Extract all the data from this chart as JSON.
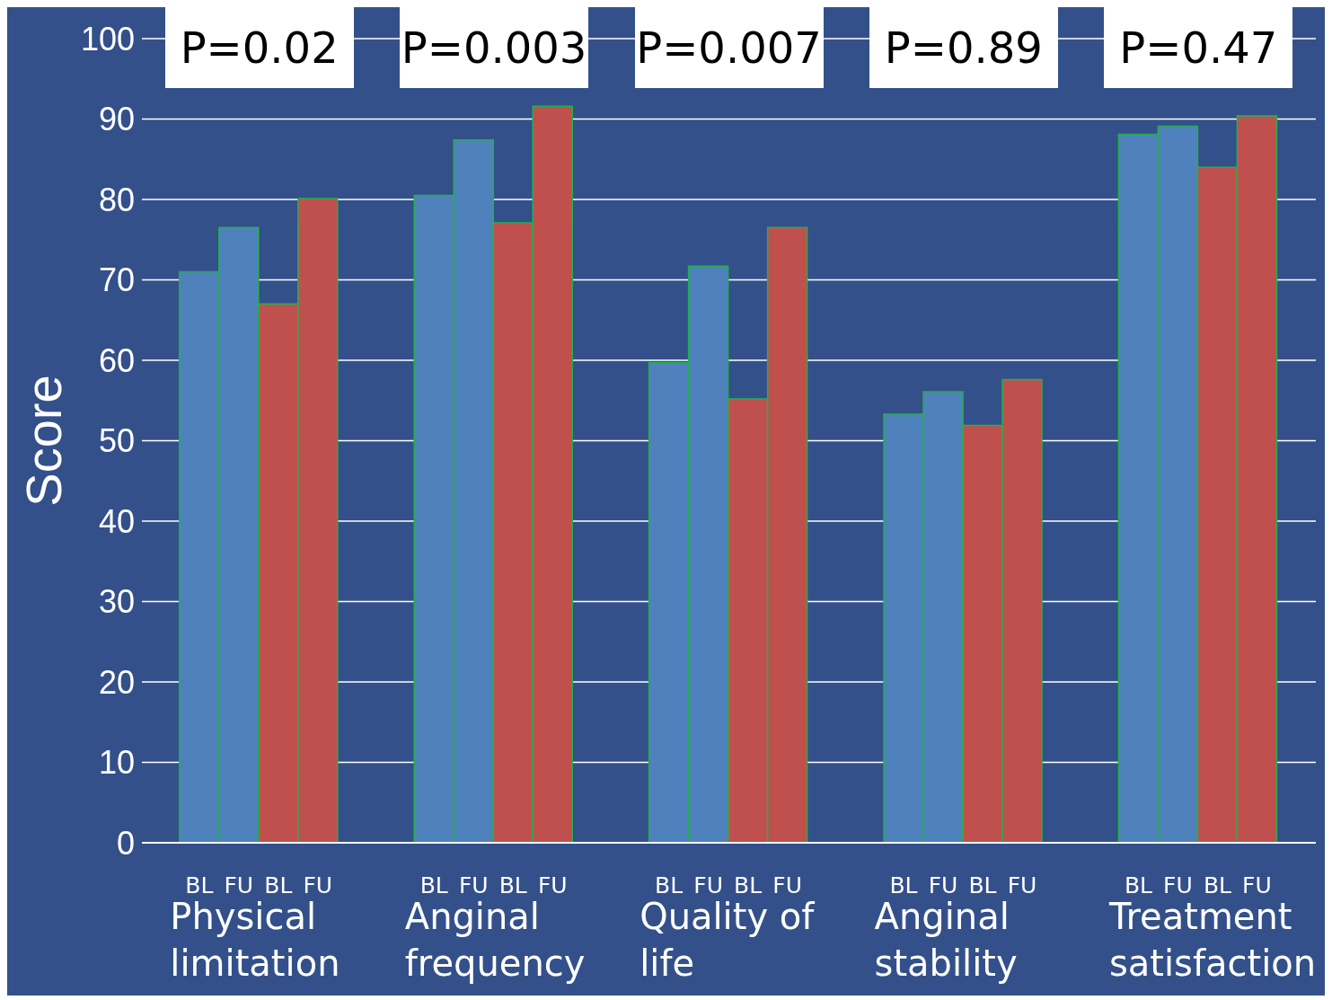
{
  "chart_data": {
    "type": "bar",
    "ylabel": "Score",
    "categories": [
      "Physical limitation",
      "Anginal frequency",
      "Quality of life",
      "Anginal stability",
      "Treatment satisfaction"
    ],
    "series": [
      {
        "name": "BL",
        "color": "#4f81bd",
        "values": [
          71.0,
          80.5,
          59.7,
          53.3,
          88.1
        ]
      },
      {
        "name": "FU",
        "color": "#4f81bd",
        "values": [
          76.5,
          87.4,
          71.7,
          56.1,
          89.1
        ]
      },
      {
        "name": "BL",
        "color": "#c0504d",
        "values": [
          67.0,
          77.1,
          55.2,
          51.9,
          84.0
        ]
      },
      {
        "name": "FU",
        "color": "#c0504d",
        "values": [
          80.1,
          91.6,
          76.5,
          57.6,
          90.4
        ]
      }
    ],
    "ylim": [
      0,
      100
    ],
    "yticks": [
      0,
      10,
      20,
      30,
      40,
      50,
      60,
      70,
      80,
      90,
      100
    ],
    "grid": "y",
    "annotations": [
      "P=0.02",
      "P=0.003",
      "P=0.007",
      "P=0.89",
      "P=0.47"
    ]
  }
}
